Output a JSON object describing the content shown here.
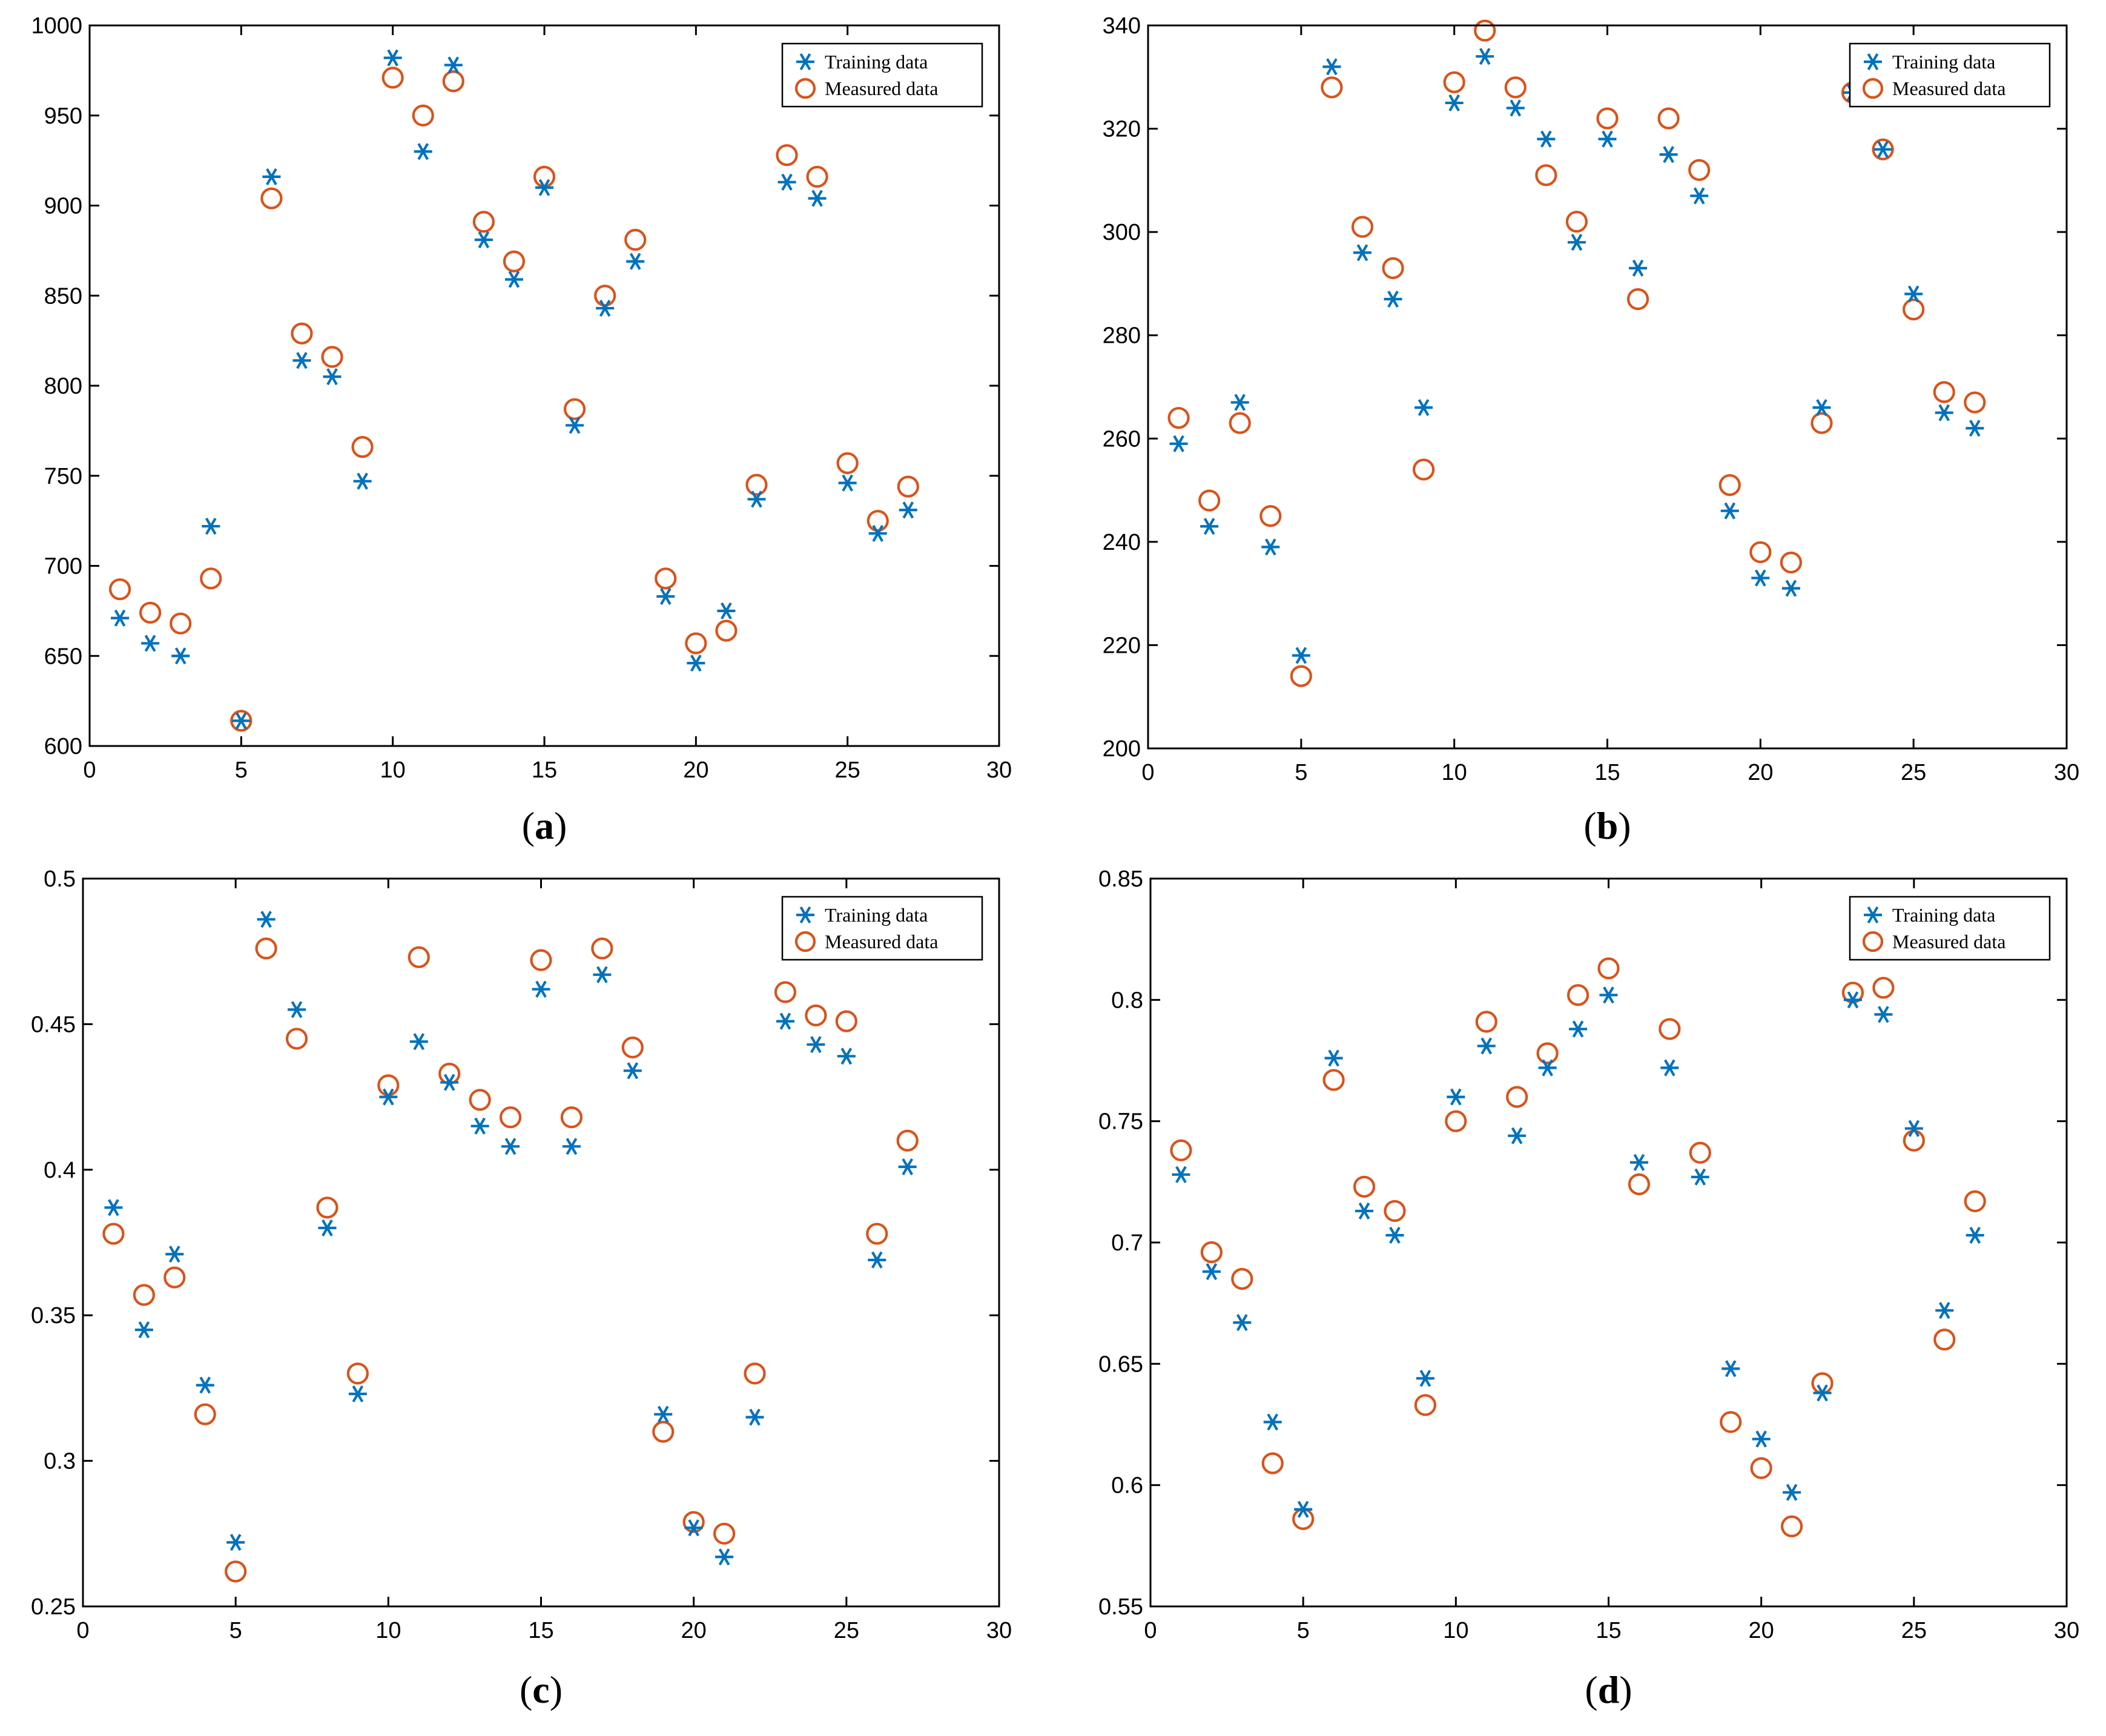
{
  "colors": {
    "training": "#0072BD",
    "measured": "#D95319",
    "axis": "#000000"
  },
  "legend": {
    "training_label": "Training data",
    "measured_label": "Measured data",
    "placement": "top-right"
  },
  "chart_data": [
    {
      "id": "a",
      "type": "scatter",
      "label_letter": "a",
      "x": [
        1,
        2,
        3,
        4,
        5,
        6,
        7,
        8,
        9,
        10,
        11,
        12,
        13,
        14,
        15,
        16,
        17,
        18,
        19,
        20,
        21,
        22,
        23,
        24,
        25,
        26,
        27
      ],
      "xlim": [
        0,
        30
      ],
      "xticks": [
        0,
        5,
        10,
        15,
        20,
        25,
        30
      ],
      "ylim": [
        600,
        1000
      ],
      "yticks": [
        600,
        650,
        700,
        750,
        800,
        850,
        900,
        950,
        1000
      ],
      "ytick_labels": [
        "600",
        "650",
        "700",
        "750",
        "800",
        "850",
        "900",
        "950",
        "1000"
      ],
      "series": [
        {
          "name": "Training data",
          "marker": "asterisk",
          "values": [
            671,
            657,
            650,
            722,
            614,
            916,
            814,
            805,
            747,
            982,
            930,
            978,
            881,
            859,
            910,
            778,
            843,
            869,
            683,
            646,
            675,
            737,
            913,
            904,
            746,
            718,
            731
          ]
        },
        {
          "name": "Measured data",
          "marker": "circle",
          "values": [
            687,
            674,
            668,
            693,
            614,
            904,
            829,
            816,
            766,
            971,
            950,
            969,
            891,
            869,
            916,
            787,
            850,
            881,
            693,
            657,
            664,
            745,
            928,
            916,
            757,
            725,
            744
          ]
        }
      ]
    },
    {
      "id": "b",
      "type": "scatter",
      "label_letter": "b",
      "x": [
        1,
        2,
        3,
        4,
        5,
        6,
        7,
        8,
        9,
        10,
        11,
        12,
        13,
        14,
        15,
        16,
        17,
        18,
        19,
        20,
        21,
        22,
        23,
        24,
        25,
        26,
        27
      ],
      "xlim": [
        0,
        30
      ],
      "xticks": [
        0,
        5,
        10,
        15,
        20,
        25,
        30
      ],
      "ylim": [
        200,
        340
      ],
      "yticks": [
        200,
        220,
        240,
        260,
        280,
        300,
        320,
        340
      ],
      "ytick_labels": [
        "200",
        "220",
        "240",
        "260",
        "280",
        "300",
        "320",
        "340"
      ],
      "series": [
        {
          "name": "Training data",
          "marker": "asterisk",
          "values": [
            259,
            243,
            267,
            239,
            218,
            332,
            296,
            287,
            266,
            325,
            334,
            324,
            318,
            298,
            318,
            293,
            315,
            307,
            246,
            233,
            231,
            266,
            327,
            316,
            288,
            265,
            262
          ]
        },
        {
          "name": "Measured data",
          "marker": "circle",
          "values": [
            264,
            248,
            263,
            245,
            214,
            328,
            301,
            293,
            254,
            329,
            339,
            328,
            311,
            302,
            322,
            287,
            322,
            312,
            251,
            238,
            236,
            263,
            327,
            316,
            285,
            269,
            267
          ]
        }
      ]
    },
    {
      "id": "c",
      "type": "scatter",
      "label_letter": "c",
      "x": [
        1,
        2,
        3,
        4,
        5,
        6,
        7,
        8,
        9,
        10,
        11,
        12,
        13,
        14,
        15,
        16,
        17,
        18,
        19,
        20,
        21,
        22,
        23,
        24,
        25,
        26,
        27
      ],
      "xlim": [
        0,
        30
      ],
      "xticks": [
        0,
        5,
        10,
        15,
        20,
        25,
        30
      ],
      "ylim": [
        0.25,
        0.5
      ],
      "yticks": [
        0.25,
        0.3,
        0.35,
        0.4,
        0.45,
        0.5
      ],
      "ytick_labels": [
        "0.25",
        "0.3",
        "0.35",
        "0.4",
        "0.45",
        "0.5"
      ],
      "series": [
        {
          "name": "Training data",
          "marker": "asterisk",
          "values": [
            0.387,
            0.345,
            0.371,
            0.326,
            0.272,
            0.486,
            0.455,
            0.38,
            0.323,
            0.425,
            0.444,
            0.43,
            0.415,
            0.408,
            0.462,
            0.408,
            0.467,
            0.434,
            0.316,
            0.277,
            0.267,
            0.315,
            0.451,
            0.443,
            0.439,
            0.369,
            0.401
          ]
        },
        {
          "name": "Measured data",
          "marker": "circle",
          "values": [
            0.378,
            0.357,
            0.363,
            0.316,
            0.262,
            0.476,
            0.445,
            0.387,
            0.33,
            0.429,
            0.473,
            0.433,
            0.424,
            0.418,
            0.472,
            0.418,
            0.476,
            0.442,
            0.31,
            0.279,
            0.275,
            0.33,
            0.461,
            0.453,
            0.451,
            0.378,
            0.41
          ]
        }
      ]
    },
    {
      "id": "d",
      "type": "scatter",
      "label_letter": "d",
      "x": [
        1,
        2,
        3,
        4,
        5,
        6,
        7,
        8,
        9,
        10,
        11,
        12,
        13,
        14,
        15,
        16,
        17,
        18,
        19,
        20,
        21,
        22,
        23,
        24,
        25,
        26,
        27
      ],
      "xlim": [
        0,
        30
      ],
      "xticks": [
        0,
        5,
        10,
        15,
        20,
        25,
        30
      ],
      "ylim": [
        0.55,
        0.85
      ],
      "yticks": [
        0.55,
        0.6,
        0.65,
        0.7,
        0.75,
        0.8,
        0.85
      ],
      "ytick_labels": [
        "0.55",
        "0.6",
        "0.65",
        "0.7",
        "0.75",
        "0.8",
        "0.85"
      ],
      "series": [
        {
          "name": "Training data",
          "marker": "asterisk",
          "values": [
            0.728,
            0.688,
            0.667,
            0.626,
            0.59,
            0.776,
            0.713,
            0.703,
            0.644,
            0.76,
            0.781,
            0.744,
            0.772,
            0.788,
            0.802,
            0.733,
            0.772,
            0.727,
            0.648,
            0.619,
            0.597,
            0.638,
            0.8,
            0.794,
            0.747,
            0.672,
            0.703
          ]
        },
        {
          "name": "Measured data",
          "marker": "circle",
          "values": [
            0.738,
            0.696,
            0.685,
            0.609,
            0.586,
            0.767,
            0.723,
            0.713,
            0.633,
            0.75,
            0.791,
            0.76,
            0.778,
            0.802,
            0.813,
            0.724,
            0.788,
            0.737,
            0.626,
            0.607,
            0.583,
            0.642,
            0.803,
            0.805,
            0.742,
            0.66,
            0.717
          ]
        }
      ]
    }
  ]
}
